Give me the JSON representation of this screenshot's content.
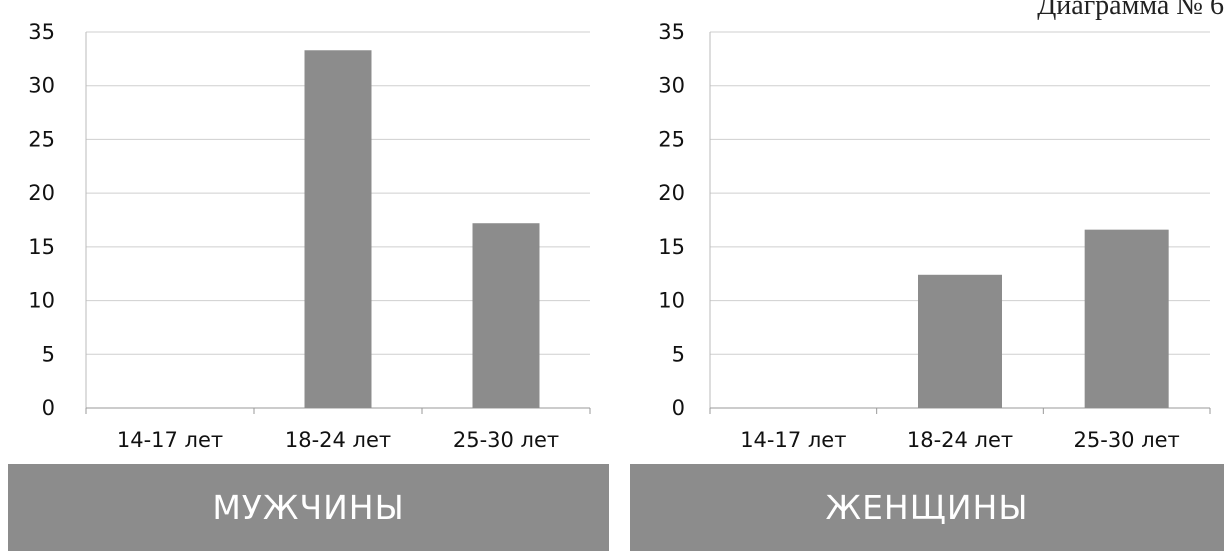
{
  "caption": "Диаграмма № 6",
  "chart_data": [
    {
      "type": "bar",
      "categories": [
        "14-17 лет",
        "18-24 лет",
        "25-30 лет"
      ],
      "values": [
        0,
        33.3,
        17.2
      ],
      "ylim": [
        0,
        35
      ],
      "yticks": [
        0,
        5,
        10,
        15,
        20,
        25,
        30,
        35
      ],
      "grid": true,
      "bar_color": "#8c8c8c",
      "banner": "МУЖЧИНЫ"
    },
    {
      "type": "bar",
      "categories": [
        "14-17 лет",
        "18-24 лет",
        "25-30 лет"
      ],
      "values": [
        0,
        12.4,
        16.6
      ],
      "ylim": [
        0,
        35
      ],
      "yticks": [
        0,
        5,
        10,
        15,
        20,
        25,
        30,
        35
      ],
      "grid": true,
      "bar_color": "#8c8c8c",
      "banner": "ЖЕНЩИНЫ"
    }
  ]
}
